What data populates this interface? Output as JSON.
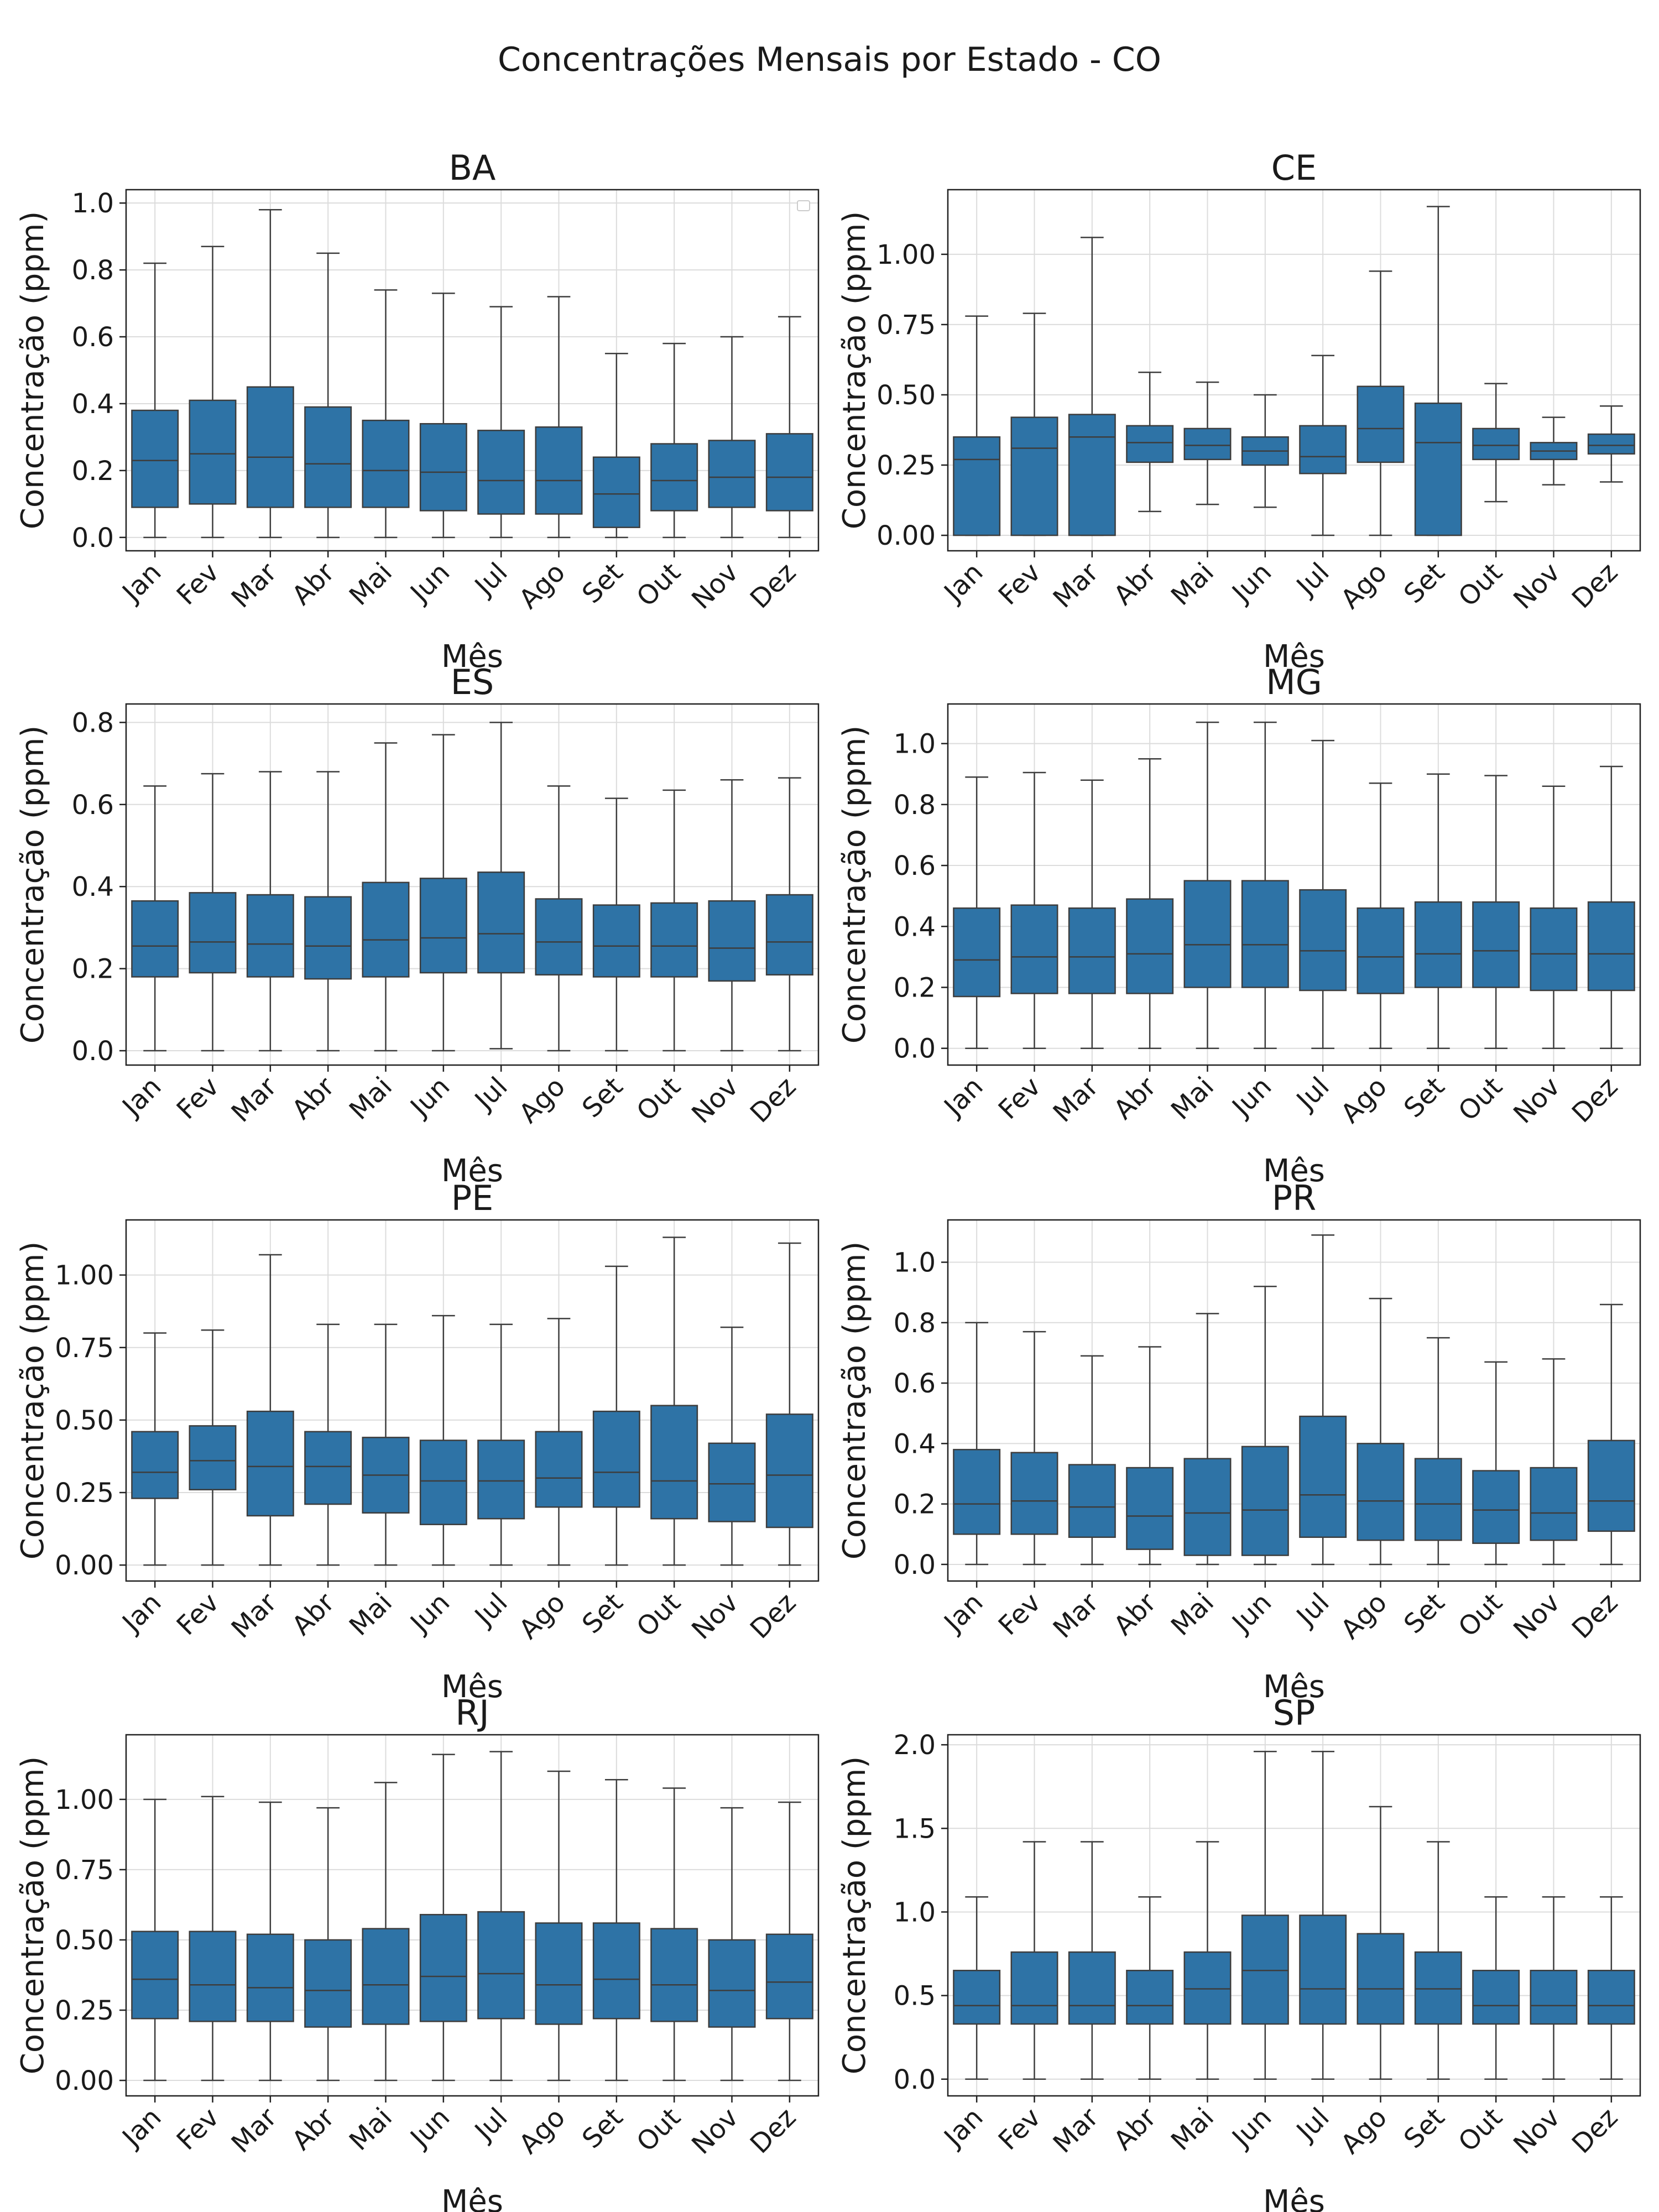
{
  "suptitle": "Concentrações Mensais por Estado - CO",
  "colors": {
    "box_fill": "#2e73a6",
    "line": "#3d3d3d",
    "grid": "#dcdcdc"
  },
  "chart_data": [
    {
      "type": "box",
      "title": "BA",
      "xlabel": "Mês",
      "ylabel": "Concentração (ppm)",
      "categories": [
        "Jan",
        "Fev",
        "Mar",
        "Abr",
        "Mai",
        "Jun",
        "Jul",
        "Ago",
        "Set",
        "Out",
        "Nov",
        "Dez"
      ],
      "yticks": [
        "0.0",
        "0.2",
        "0.4",
        "0.6",
        "0.8",
        "1.0"
      ],
      "ytick_values": [
        0,
        0.2,
        0.4,
        0.6,
        0.8,
        1.0
      ],
      "ylim": [
        -0.04,
        1.04
      ],
      "grid": true,
      "legend": "empty box at top-right",
      "boxes": [
        {
          "whislo": 0,
          "q1": 0.09,
          "med": 0.23,
          "q3": 0.38,
          "whishi": 0.82
        },
        {
          "whislo": 0,
          "q1": 0.1,
          "med": 0.25,
          "q3": 0.41,
          "whishi": 0.87
        },
        {
          "whislo": 0,
          "q1": 0.09,
          "med": 0.24,
          "q3": 0.45,
          "whishi": 0.98
        },
        {
          "whislo": 0,
          "q1": 0.09,
          "med": 0.22,
          "q3": 0.39,
          "whishi": 0.85
        },
        {
          "whislo": 0,
          "q1": 0.09,
          "med": 0.2,
          "q3": 0.35,
          "whishi": 0.74
        },
        {
          "whislo": 0,
          "q1": 0.08,
          "med": 0.195,
          "q3": 0.34,
          "whishi": 0.73
        },
        {
          "whislo": 0,
          "q1": 0.07,
          "med": 0.17,
          "q3": 0.32,
          "whishi": 0.69
        },
        {
          "whislo": 0,
          "q1": 0.07,
          "med": 0.17,
          "q3": 0.33,
          "whishi": 0.72
        },
        {
          "whislo": 0,
          "q1": 0.03,
          "med": 0.13,
          "q3": 0.24,
          "whishi": 0.55
        },
        {
          "whislo": 0,
          "q1": 0.08,
          "med": 0.17,
          "q3": 0.28,
          "whishi": 0.58
        },
        {
          "whislo": 0,
          "q1": 0.09,
          "med": 0.18,
          "q3": 0.29,
          "whishi": 0.6
        },
        {
          "whislo": 0,
          "q1": 0.08,
          "med": 0.18,
          "q3": 0.31,
          "whishi": 0.66
        }
      ]
    },
    {
      "type": "box",
      "title": "CE",
      "xlabel": "Mês",
      "ylabel": "Concentração (ppm)",
      "categories": [
        "Jan",
        "Fev",
        "Mar",
        "Abr",
        "Mai",
        "Jun",
        "Jul",
        "Ago",
        "Set",
        "Out",
        "Nov",
        "Dez"
      ],
      "yticks": [
        "0.00",
        "0.25",
        "0.50",
        "0.75",
        "1.00"
      ],
      "ytick_values": [
        0,
        0.25,
        0.5,
        0.75,
        1.0
      ],
      "ylim": [
        -0.055,
        1.23
      ],
      "grid": true,
      "boxes": [
        {
          "whislo": 0,
          "q1": 0,
          "med": 0.27,
          "q3": 0.35,
          "whishi": 0.78
        },
        {
          "whislo": 0,
          "q1": 0,
          "med": 0.31,
          "q3": 0.42,
          "whishi": 0.79
        },
        {
          "whislo": 0,
          "q1": 0,
          "med": 0.35,
          "q3": 0.43,
          "whishi": 1.06
        },
        {
          "whislo": 0.085,
          "q1": 0.26,
          "med": 0.33,
          "q3": 0.39,
          "whishi": 0.58
        },
        {
          "whislo": 0.11,
          "q1": 0.27,
          "med": 0.32,
          "q3": 0.38,
          "whishi": 0.545
        },
        {
          "whislo": 0.1,
          "q1": 0.25,
          "med": 0.3,
          "q3": 0.35,
          "whishi": 0.5
        },
        {
          "whislo": 0,
          "q1": 0.22,
          "med": 0.28,
          "q3": 0.39,
          "whishi": 0.64
        },
        {
          "whislo": 0,
          "q1": 0.26,
          "med": 0.38,
          "q3": 0.53,
          "whishi": 0.94
        },
        {
          "whislo": 0,
          "q1": 0,
          "med": 0.33,
          "q3": 0.47,
          "whishi": 1.17
        },
        {
          "whislo": 0.12,
          "q1": 0.27,
          "med": 0.32,
          "q3": 0.38,
          "whishi": 0.54
        },
        {
          "whislo": 0.18,
          "q1": 0.27,
          "med": 0.3,
          "q3": 0.33,
          "whishi": 0.42
        },
        {
          "whislo": 0.19,
          "q1": 0.29,
          "med": 0.32,
          "q3": 0.36,
          "whishi": 0.46
        }
      ]
    },
    {
      "type": "box",
      "title": "ES",
      "xlabel": "Mês",
      "ylabel": "Concentração (ppm)",
      "categories": [
        "Jan",
        "Fev",
        "Mar",
        "Abr",
        "Mai",
        "Jun",
        "Jul",
        "Ago",
        "Set",
        "Out",
        "Nov",
        "Dez"
      ],
      "yticks": [
        "0.0",
        "0.2",
        "0.4",
        "0.6",
        "0.8"
      ],
      "ytick_values": [
        0,
        0.2,
        0.4,
        0.6,
        0.8
      ],
      "ylim": [
        -0.035,
        0.845
      ],
      "grid": true,
      "boxes": [
        {
          "whislo": 0,
          "q1": 0.18,
          "med": 0.255,
          "q3": 0.365,
          "whishi": 0.645
        },
        {
          "whislo": 0,
          "q1": 0.19,
          "med": 0.265,
          "q3": 0.385,
          "whishi": 0.675
        },
        {
          "whislo": 0,
          "q1": 0.18,
          "med": 0.26,
          "q3": 0.38,
          "whishi": 0.68
        },
        {
          "whislo": 0,
          "q1": 0.175,
          "med": 0.255,
          "q3": 0.375,
          "whishi": 0.68
        },
        {
          "whislo": 0,
          "q1": 0.18,
          "med": 0.27,
          "q3": 0.41,
          "whishi": 0.75
        },
        {
          "whislo": 0,
          "q1": 0.19,
          "med": 0.275,
          "q3": 0.42,
          "whishi": 0.77
        },
        {
          "whislo": 0.005,
          "q1": 0.19,
          "med": 0.285,
          "q3": 0.435,
          "whishi": 0.8
        },
        {
          "whislo": 0,
          "q1": 0.185,
          "med": 0.265,
          "q3": 0.37,
          "whishi": 0.645
        },
        {
          "whislo": 0,
          "q1": 0.18,
          "med": 0.255,
          "q3": 0.355,
          "whishi": 0.615
        },
        {
          "whislo": 0,
          "q1": 0.18,
          "med": 0.255,
          "q3": 0.36,
          "whishi": 0.635
        },
        {
          "whislo": 0,
          "q1": 0.17,
          "med": 0.25,
          "q3": 0.365,
          "whishi": 0.66
        },
        {
          "whislo": 0,
          "q1": 0.185,
          "med": 0.265,
          "q3": 0.38,
          "whishi": 0.665
        }
      ]
    },
    {
      "type": "box",
      "title": "MG",
      "xlabel": "Mês",
      "ylabel": "Concentração (ppm)",
      "categories": [
        "Jan",
        "Fev",
        "Mar",
        "Abr",
        "Mai",
        "Jun",
        "Jul",
        "Ago",
        "Set",
        "Out",
        "Nov",
        "Dez"
      ],
      "yticks": [
        "0.0",
        "0.2",
        "0.4",
        "0.6",
        "0.8",
        "1.0"
      ],
      "ytick_values": [
        0,
        0.2,
        0.4,
        0.6,
        0.8,
        1.0
      ],
      "ylim": [
        -0.055,
        1.13
      ],
      "grid": true,
      "boxes": [
        {
          "whislo": 0,
          "q1": 0.17,
          "med": 0.29,
          "q3": 0.46,
          "whishi": 0.89
        },
        {
          "whislo": 0,
          "q1": 0.18,
          "med": 0.3,
          "q3": 0.47,
          "whishi": 0.905
        },
        {
          "whislo": 0,
          "q1": 0.18,
          "med": 0.3,
          "q3": 0.46,
          "whishi": 0.88
        },
        {
          "whislo": 0,
          "q1": 0.18,
          "med": 0.31,
          "q3": 0.49,
          "whishi": 0.95
        },
        {
          "whislo": 0,
          "q1": 0.2,
          "med": 0.34,
          "q3": 0.55,
          "whishi": 1.07
        },
        {
          "whislo": 0,
          "q1": 0.2,
          "med": 0.34,
          "q3": 0.55,
          "whishi": 1.07
        },
        {
          "whislo": 0,
          "q1": 0.19,
          "med": 0.32,
          "q3": 0.52,
          "whishi": 1.01
        },
        {
          "whislo": 0,
          "q1": 0.18,
          "med": 0.3,
          "q3": 0.46,
          "whishi": 0.87
        },
        {
          "whislo": 0,
          "q1": 0.2,
          "med": 0.31,
          "q3": 0.48,
          "whishi": 0.9
        },
        {
          "whislo": 0,
          "q1": 0.2,
          "med": 0.32,
          "q3": 0.48,
          "whishi": 0.895
        },
        {
          "whislo": 0,
          "q1": 0.19,
          "med": 0.31,
          "q3": 0.46,
          "whishi": 0.86
        },
        {
          "whislo": 0,
          "q1": 0.19,
          "med": 0.31,
          "q3": 0.48,
          "whishi": 0.925
        }
      ]
    },
    {
      "type": "box",
      "title": "PE",
      "xlabel": "Mês",
      "ylabel": "Concentração (ppm)",
      "categories": [
        "Jan",
        "Fev",
        "Mar",
        "Abr",
        "Mai",
        "Jun",
        "Jul",
        "Ago",
        "Set",
        "Out",
        "Nov",
        "Dez"
      ],
      "yticks": [
        "0.00",
        "0.25",
        "0.50",
        "0.75",
        "1.00"
      ],
      "ytick_values": [
        0,
        0.25,
        0.5,
        0.75,
        1.0
      ],
      "ylim": [
        -0.055,
        1.19
      ],
      "grid": true,
      "boxes": [
        {
          "whislo": 0,
          "q1": 0.23,
          "med": 0.32,
          "q3": 0.46,
          "whishi": 0.8
        },
        {
          "whislo": 0,
          "q1": 0.26,
          "med": 0.36,
          "q3": 0.48,
          "whishi": 0.81
        },
        {
          "whislo": 0,
          "q1": 0.17,
          "med": 0.34,
          "q3": 0.53,
          "whishi": 1.07
        },
        {
          "whislo": 0,
          "q1": 0.21,
          "med": 0.34,
          "q3": 0.46,
          "whishi": 0.83
        },
        {
          "whislo": 0,
          "q1": 0.18,
          "med": 0.31,
          "q3": 0.44,
          "whishi": 0.83
        },
        {
          "whislo": 0,
          "q1": 0.14,
          "med": 0.29,
          "q3": 0.43,
          "whishi": 0.86
        },
        {
          "whislo": 0,
          "q1": 0.16,
          "med": 0.29,
          "q3": 0.43,
          "whishi": 0.83
        },
        {
          "whislo": 0,
          "q1": 0.2,
          "med": 0.3,
          "q3": 0.46,
          "whishi": 0.85
        },
        {
          "whislo": 0,
          "q1": 0.2,
          "med": 0.32,
          "q3": 0.53,
          "whishi": 1.03
        },
        {
          "whislo": 0,
          "q1": 0.16,
          "med": 0.29,
          "q3": 0.55,
          "whishi": 1.13
        },
        {
          "whislo": 0,
          "q1": 0.15,
          "med": 0.28,
          "q3": 0.42,
          "whishi": 0.82
        },
        {
          "whislo": 0,
          "q1": 0.13,
          "med": 0.31,
          "q3": 0.52,
          "whishi": 1.11
        }
      ]
    },
    {
      "type": "box",
      "title": "PR",
      "xlabel": "Mês",
      "ylabel": "Concentração (ppm)",
      "categories": [
        "Jan",
        "Fev",
        "Mar",
        "Abr",
        "Mai",
        "Jun",
        "Jul",
        "Ago",
        "Set",
        "Out",
        "Nov",
        "Dez"
      ],
      "yticks": [
        "0.0",
        "0.2",
        "0.4",
        "0.6",
        "0.8",
        "1.0"
      ],
      "ytick_values": [
        0,
        0.2,
        0.4,
        0.6,
        0.8,
        1.0
      ],
      "ylim": [
        -0.055,
        1.14
      ],
      "grid": true,
      "boxes": [
        {
          "whislo": 0,
          "q1": 0.1,
          "med": 0.2,
          "q3": 0.38,
          "whishi": 0.8
        },
        {
          "whislo": 0,
          "q1": 0.1,
          "med": 0.21,
          "q3": 0.37,
          "whishi": 0.77
        },
        {
          "whislo": 0,
          "q1": 0.09,
          "med": 0.19,
          "q3": 0.33,
          "whishi": 0.69
        },
        {
          "whislo": 0,
          "q1": 0.05,
          "med": 0.16,
          "q3": 0.32,
          "whishi": 0.72
        },
        {
          "whislo": 0,
          "q1": 0.03,
          "med": 0.17,
          "q3": 0.35,
          "whishi": 0.83
        },
        {
          "whislo": 0,
          "q1": 0.03,
          "med": 0.18,
          "q3": 0.39,
          "whishi": 0.92
        },
        {
          "whislo": 0,
          "q1": 0.09,
          "med": 0.23,
          "q3": 0.49,
          "whishi": 1.09
        },
        {
          "whislo": 0,
          "q1": 0.08,
          "med": 0.21,
          "q3": 0.4,
          "whishi": 0.88
        },
        {
          "whislo": 0,
          "q1": 0.08,
          "med": 0.2,
          "q3": 0.35,
          "whishi": 0.75
        },
        {
          "whislo": 0,
          "q1": 0.07,
          "med": 0.18,
          "q3": 0.31,
          "whishi": 0.67
        },
        {
          "whislo": 0,
          "q1": 0.08,
          "med": 0.17,
          "q3": 0.32,
          "whishi": 0.68
        },
        {
          "whislo": 0,
          "q1": 0.11,
          "med": 0.21,
          "q3": 0.41,
          "whishi": 0.86
        }
      ]
    },
    {
      "type": "box",
      "title": "RJ",
      "xlabel": "Mês",
      "ylabel": "Concentração (ppm)",
      "categories": [
        "Jan",
        "Fev",
        "Mar",
        "Abr",
        "Mai",
        "Jun",
        "Jul",
        "Ago",
        "Set",
        "Out",
        "Nov",
        "Dez"
      ],
      "yticks": [
        "0.00",
        "0.25",
        "0.50",
        "0.75",
        "1.00"
      ],
      "ytick_values": [
        0,
        0.25,
        0.5,
        0.75,
        1.0
      ],
      "ylim": [
        -0.055,
        1.23
      ],
      "grid": true,
      "boxes": [
        {
          "whislo": 0,
          "q1": 0.22,
          "med": 0.36,
          "q3": 0.53,
          "whishi": 1.0
        },
        {
          "whislo": 0,
          "q1": 0.21,
          "med": 0.34,
          "q3": 0.53,
          "whishi": 1.01
        },
        {
          "whislo": 0,
          "q1": 0.21,
          "med": 0.33,
          "q3": 0.52,
          "whishi": 0.99
        },
        {
          "whislo": 0,
          "q1": 0.19,
          "med": 0.32,
          "q3": 0.5,
          "whishi": 0.97
        },
        {
          "whislo": 0,
          "q1": 0.2,
          "med": 0.34,
          "q3": 0.54,
          "whishi": 1.06
        },
        {
          "whislo": 0,
          "q1": 0.21,
          "med": 0.37,
          "q3": 0.59,
          "whishi": 1.16
        },
        {
          "whislo": 0,
          "q1": 0.22,
          "med": 0.38,
          "q3": 0.6,
          "whishi": 1.17
        },
        {
          "whislo": 0,
          "q1": 0.2,
          "med": 0.34,
          "q3": 0.56,
          "whishi": 1.1
        },
        {
          "whislo": 0,
          "q1": 0.22,
          "med": 0.36,
          "q3": 0.56,
          "whishi": 1.07
        },
        {
          "whislo": 0,
          "q1": 0.21,
          "med": 0.34,
          "q3": 0.54,
          "whishi": 1.04
        },
        {
          "whislo": 0,
          "q1": 0.19,
          "med": 0.32,
          "q3": 0.5,
          "whishi": 0.97
        },
        {
          "whislo": 0,
          "q1": 0.22,
          "med": 0.35,
          "q3": 0.52,
          "whishi": 0.99
        }
      ]
    },
    {
      "type": "box",
      "title": "SP",
      "xlabel": "Mês",
      "ylabel": "Concentração (ppm)",
      "categories": [
        "Jan",
        "Fev",
        "Mar",
        "Abr",
        "Mai",
        "Jun",
        "Jul",
        "Ago",
        "Set",
        "Out",
        "Nov",
        "Dez"
      ],
      "yticks": [
        "0.0",
        "0.5",
        "1.0",
        "1.5",
        "2.0"
      ],
      "ytick_values": [
        0,
        0.5,
        1.0,
        1.5,
        2.0
      ],
      "ylim": [
        -0.1,
        2.06
      ],
      "grid": true,
      "boxes": [
        {
          "whislo": 0,
          "q1": 0.33,
          "med": 0.44,
          "q3": 0.65,
          "whishi": 1.09
        },
        {
          "whislo": 0,
          "q1": 0.33,
          "med": 0.44,
          "q3": 0.76,
          "whishi": 1.42
        },
        {
          "whislo": 0,
          "q1": 0.33,
          "med": 0.44,
          "q3": 0.76,
          "whishi": 1.42
        },
        {
          "whislo": 0,
          "q1": 0.33,
          "med": 0.44,
          "q3": 0.65,
          "whishi": 1.09
        },
        {
          "whislo": 0,
          "q1": 0.33,
          "med": 0.54,
          "q3": 0.76,
          "whishi": 1.42
        },
        {
          "whislo": 0,
          "q1": 0.33,
          "med": 0.65,
          "q3": 0.98,
          "whishi": 1.96
        },
        {
          "whislo": 0,
          "q1": 0.33,
          "med": 0.54,
          "q3": 0.98,
          "whishi": 1.96
        },
        {
          "whislo": 0,
          "q1": 0.33,
          "med": 0.54,
          "q3": 0.87,
          "whishi": 1.63
        },
        {
          "whislo": 0,
          "q1": 0.33,
          "med": 0.54,
          "q3": 0.76,
          "whishi": 1.42
        },
        {
          "whislo": 0,
          "q1": 0.33,
          "med": 0.44,
          "q3": 0.65,
          "whishi": 1.09
        },
        {
          "whislo": 0,
          "q1": 0.33,
          "med": 0.44,
          "q3": 0.65,
          "whishi": 1.09
        },
        {
          "whislo": 0,
          "q1": 0.33,
          "med": 0.44,
          "q3": 0.65,
          "whishi": 1.09
        }
      ]
    }
  ]
}
